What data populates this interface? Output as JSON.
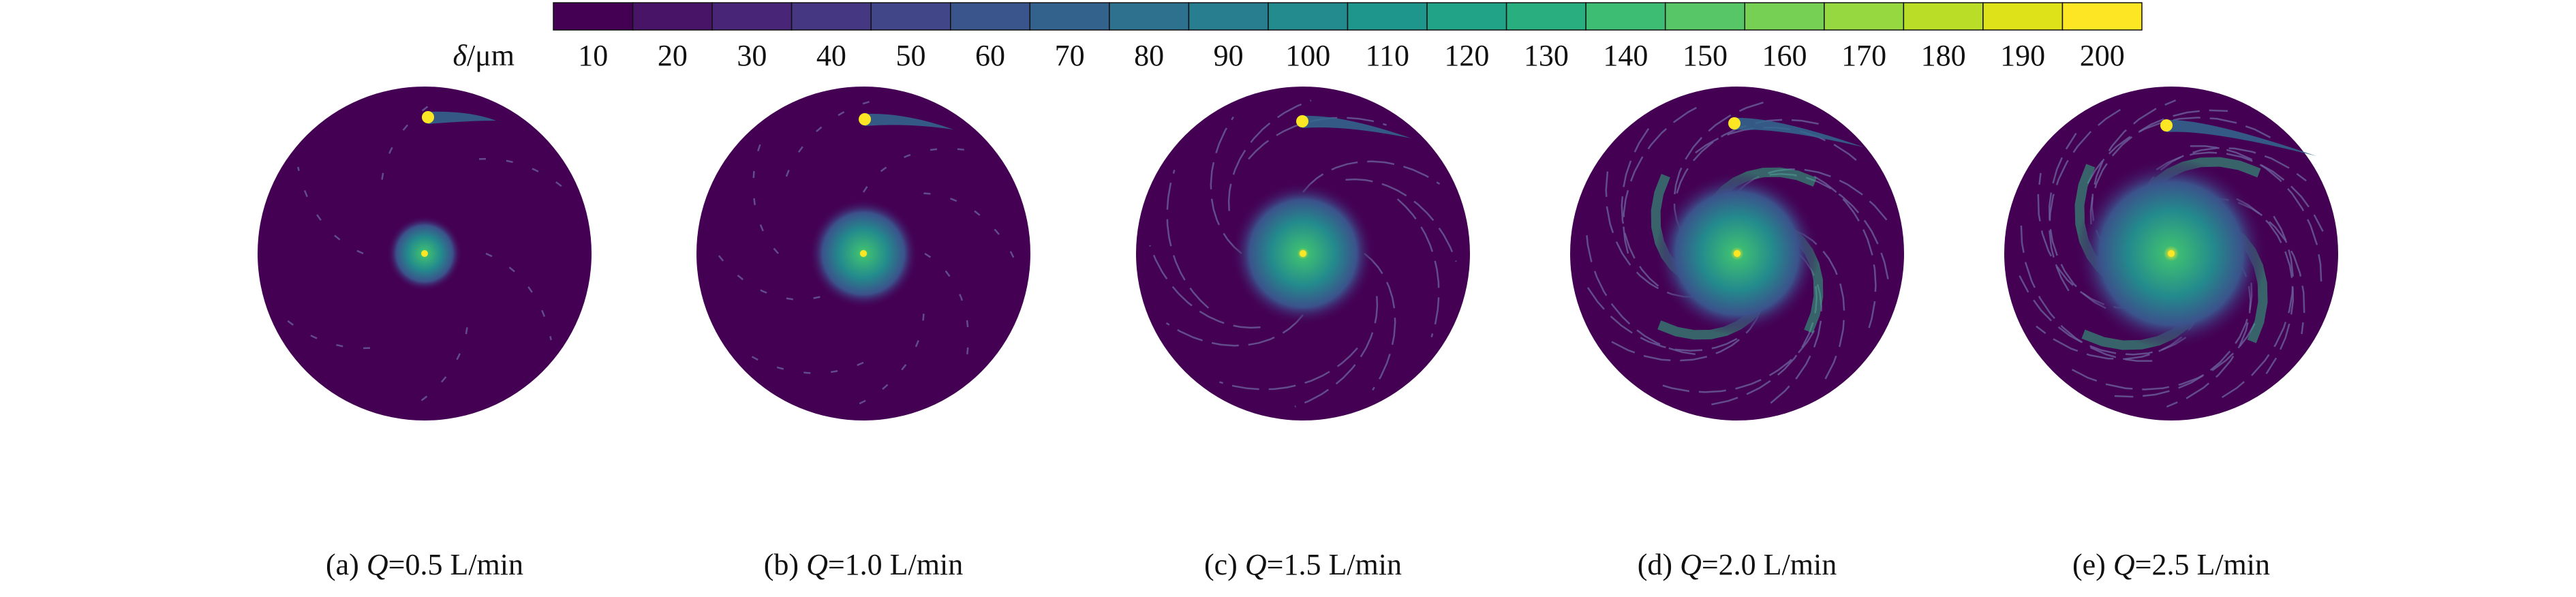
{
  "colorbar": {
    "label_symbol": "δ",
    "label_unit": "/μm",
    "levels": [
      10,
      20,
      30,
      40,
      50,
      60,
      70,
      80,
      90,
      100,
      110,
      120,
      130,
      140,
      150,
      160,
      170,
      180,
      190,
      200
    ],
    "colors": [
      "#440154",
      "#481467",
      "#482576",
      "#453781",
      "#404688",
      "#39558c",
      "#33638d",
      "#2d718e",
      "#287d8e",
      "#238a8d",
      "#1f968b",
      "#20a386",
      "#29af7f",
      "#3dbc74",
      "#56c667",
      "#75d054",
      "#95d840",
      "#bade28",
      "#dde318",
      "#fde725"
    ]
  },
  "panels": [
    {
      "tag": "(a)",
      "symbol": "Q",
      "text": "=0.5 L/min"
    },
    {
      "tag": "(b)",
      "symbol": "Q",
      "text": "=1.0 L/min"
    },
    {
      "tag": "(c)",
      "symbol": "Q",
      "text": "=1.5 L/min"
    },
    {
      "tag": "(d)",
      "symbol": "Q",
      "text": "=2.0 L/min"
    },
    {
      "tag": "(e)",
      "symbol": "Q",
      "text": "=2.5 L/min"
    }
  ]
}
